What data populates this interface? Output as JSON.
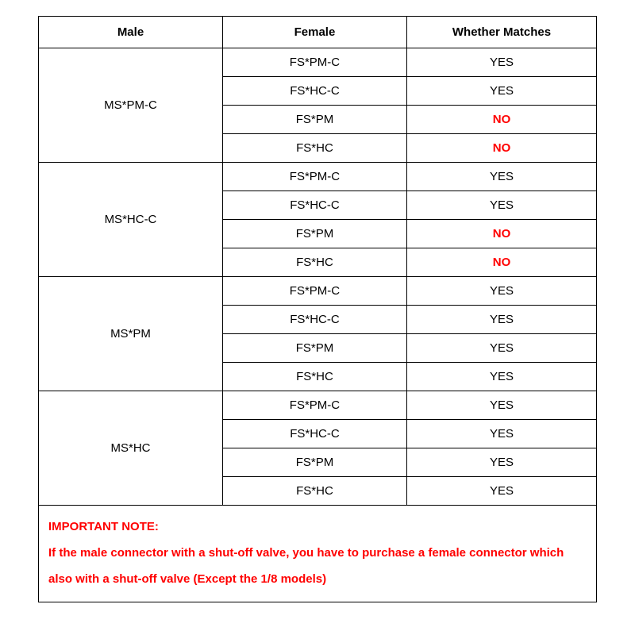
{
  "columns": [
    "Male",
    "Female",
    "Whether Matches"
  ],
  "groups": [
    {
      "male": "MS*PM-C",
      "rows": [
        {
          "female": "FS*PM-C",
          "match": "YES",
          "no": false
        },
        {
          "female": "FS*HC-C",
          "match": "YES",
          "no": false
        },
        {
          "female": "FS*PM",
          "match": "NO",
          "no": true
        },
        {
          "female": "FS*HC",
          "match": "NO",
          "no": true
        }
      ]
    },
    {
      "male": "MS*HC-C",
      "rows": [
        {
          "female": "FS*PM-C",
          "match": "YES",
          "no": false
        },
        {
          "female": "FS*HC-C",
          "match": "YES",
          "no": false
        },
        {
          "female": "FS*PM",
          "match": "NO",
          "no": true
        },
        {
          "female": "FS*HC",
          "match": "NO",
          "no": true
        }
      ]
    },
    {
      "male": "MS*PM",
      "rows": [
        {
          "female": "FS*PM-C",
          "match": "YES",
          "no": false
        },
        {
          "female": "FS*HC-C",
          "match": "YES",
          "no": false
        },
        {
          "female": "FS*PM",
          "match": "YES",
          "no": false
        },
        {
          "female": "FS*HC",
          "match": "YES",
          "no": false
        }
      ]
    },
    {
      "male": "MS*HC",
      "rows": [
        {
          "female": "FS*PM-C",
          "match": "YES",
          "no": false
        },
        {
          "female": "FS*HC-C",
          "match": "YES",
          "no": false
        },
        {
          "female": "FS*PM",
          "match": "YES",
          "no": false
        },
        {
          "female": "FS*HC",
          "match": "YES",
          "no": false
        }
      ]
    }
  ],
  "note_title": "IMPORTANT NOTE:",
  "note_body": "If the male connector with a shut-off valve, you have to purchase a female connector which also with a shut-off valve (Except the 1/8 models)",
  "colors": {
    "border": "#000000",
    "text": "#000000",
    "no": "#ff0000",
    "note": "#ff0000",
    "background": "#ffffff"
  },
  "col_widths_pct": [
    33,
    33,
    34
  ]
}
